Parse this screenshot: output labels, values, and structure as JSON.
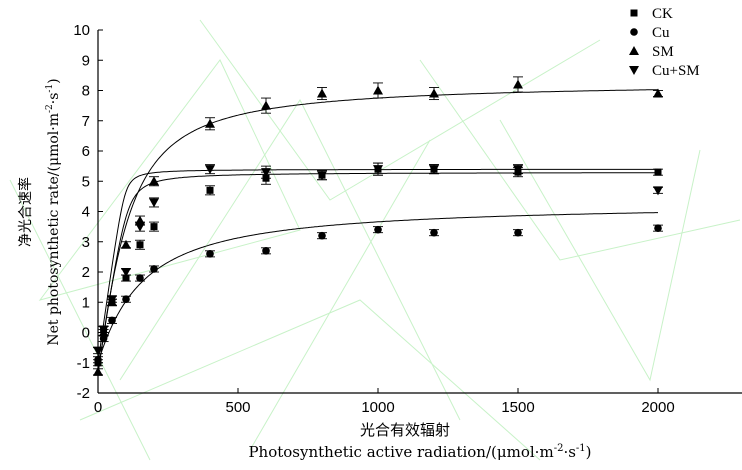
{
  "chart_data": {
    "type": "scatter",
    "xlabel_cn": "光合有效辐射",
    "xlabel_en": "Photosynthetic active radiation/",
    "xlabel_unit_pre": "(μmol·m",
    "xlabel_unit_exp1": "-2",
    "xlabel_unit_mid": "·s",
    "xlabel_unit_exp2": "-1",
    "xlabel_unit_post": ")",
    "ylabel_cn": "净光合速率",
    "ylabel_en": "Net photosynthetic rate/",
    "ylabel_unit_pre": "(μmol·m",
    "ylabel_unit_exp1": "-2",
    "ylabel_unit_mid": "·s",
    "ylabel_unit_exp2": "-1",
    "ylabel_unit_post": ")",
    "xlim": [
      0,
      2300
    ],
    "ylim": [
      -2,
      10
    ],
    "xticks": [
      0,
      500,
      1000,
      1500,
      2000
    ],
    "yticks": [
      -2,
      -1,
      0,
      1,
      2,
      3,
      4,
      5,
      6,
      7,
      8,
      9,
      10
    ],
    "legend_position": "top-right",
    "series": [
      {
        "name": "CK",
        "marker": "square",
        "x": [
          0,
          20,
          50,
          100,
          150,
          200,
          400,
          600,
          800,
          1000,
          1200,
          1500,
          2000
        ],
        "y": [
          -1.0,
          0.1,
          1.0,
          1.8,
          2.9,
          3.5,
          4.7,
          5.1,
          5.2,
          5.4,
          5.4,
          5.3,
          5.3
        ],
        "err": [
          0.1,
          0.1,
          0.1,
          0.1,
          0.15,
          0.15,
          0.15,
          0.2,
          0.15,
          0.2,
          0.15,
          0.15,
          0.1
        ],
        "fit": {
          "pmax": 6.6,
          "alpha": 0.06,
          "theta": 0.95,
          "rd": 1.3
        }
      },
      {
        "name": "Cu",
        "marker": "circle",
        "x": [
          0,
          20,
          50,
          100,
          150,
          200,
          400,
          600,
          800,
          1000,
          1200,
          1500,
          2000
        ],
        "y": [
          -0.9,
          -0.2,
          0.4,
          1.1,
          1.8,
          2.1,
          2.6,
          2.7,
          3.2,
          3.4,
          3.3,
          3.3,
          3.45
        ],
        "err": [
          0.1,
          0.1,
          0.1,
          0.1,
          0.1,
          0.1,
          0.1,
          0.1,
          0.1,
          0.1,
          0.1,
          0.1,
          0.1
        ],
        "fit": {
          "pmax": 5.3,
          "alpha": 0.03,
          "theta": 0.25,
          "rd": 1.0
        }
      },
      {
        "name": "SM",
        "marker": "triangle-up",
        "x": [
          0,
          20,
          50,
          100,
          150,
          200,
          400,
          600,
          800,
          1000,
          1200,
          1500,
          2000
        ],
        "y": [
          -1.3,
          0.0,
          1.0,
          2.9,
          3.7,
          5.0,
          6.9,
          7.5,
          7.9,
          8.0,
          7.9,
          8.2,
          7.9
        ],
        "err": [
          0.1,
          0.1,
          0.1,
          0.1,
          0.15,
          0.15,
          0.2,
          0.25,
          0.2,
          0.25,
          0.2,
          0.25,
          0.1
        ],
        "fit": {
          "pmax": 9.7,
          "alpha": 0.07,
          "theta": 0.6,
          "rd": 1.4
        }
      },
      {
        "name": "Cu+SM",
        "marker": "triangle-down",
        "x": [
          0,
          20,
          50,
          100,
          150,
          200,
          400,
          600,
          800,
          1000,
          1200,
          1500,
          2000
        ],
        "y": [
          -0.6,
          0.1,
          1.1,
          2.0,
          3.5,
          4.3,
          5.4,
          5.3,
          5.2,
          5.4,
          5.4,
          5.4,
          4.7
        ],
        "err": [
          0.1,
          0.1,
          0.1,
          0.1,
          0.15,
          0.15,
          0.15,
          0.2,
          0.15,
          0.2,
          0.15,
          0.15,
          0.1
        ],
        "fit": {
          "pmax": 6.4,
          "alpha": 0.065,
          "theta": 0.98,
          "rd": 1.0
        }
      }
    ]
  }
}
